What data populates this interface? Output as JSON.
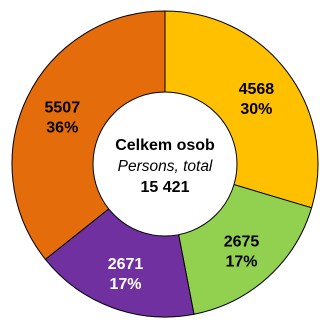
{
  "chart_data": {
    "type": "pie",
    "variant": "donut",
    "center": {
      "line1": "Celkem osob",
      "line2": "Persons, total",
      "line3": "15 421"
    },
    "slices": [
      {
        "value": 4568,
        "value_label": "4568",
        "percent_label": "30%",
        "color": "#FFC000",
        "label_color": "#000000"
      },
      {
        "value": 2675,
        "value_label": "2675",
        "percent_label": "17%",
        "color": "#92D050",
        "label_color": "#000000"
      },
      {
        "value": 2671,
        "value_label": "2671",
        "percent_label": "17%",
        "color": "#7030A0",
        "label_color": "#FFFFFF"
      },
      {
        "value": 5507,
        "value_label": "5507",
        "percent_label": "36%",
        "color": "#E46C0A",
        "label_color": "#000000"
      }
    ]
  }
}
